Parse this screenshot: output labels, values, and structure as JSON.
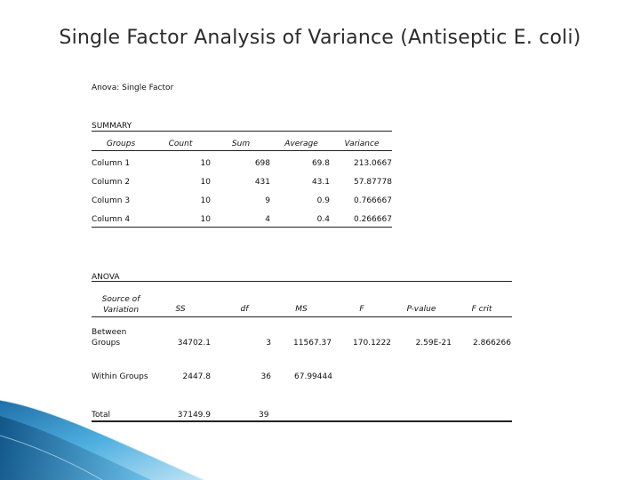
{
  "title": "Single Factor Analysis of Variance (Antiseptic E. coli)",
  "heading": "Anova: Single Factor",
  "summary": {
    "label": "SUMMARY",
    "headers": [
      "Groups",
      "Count",
      "Sum",
      "Average",
      "Variance"
    ],
    "rows": [
      [
        "Column 1",
        "10",
        "698",
        "69.8",
        "213.0667"
      ],
      [
        "Column 2",
        "10",
        "431",
        "43.1",
        "57.87778"
      ],
      [
        "Column 3",
        "10",
        "9",
        "0.9",
        "0.766667"
      ],
      [
        "Column 4",
        "10",
        "4",
        "0.4",
        "0.266667"
      ]
    ]
  },
  "anova": {
    "label": "ANOVA",
    "headers": [
      "Source of Variation",
      "SS",
      "df",
      "MS",
      "F",
      "P-value",
      "F crit"
    ],
    "rows": [
      [
        "Between Groups",
        "34702.1",
        "3",
        "11567.37",
        "170.1222",
        "2.59E-21",
        "2.866266"
      ],
      [
        "Within Groups",
        "2447.8",
        "36",
        "67.99444",
        "",
        "",
        ""
      ],
      [
        "Total",
        "37149.9",
        "39",
        "",
        "",
        "",
        ""
      ]
    ]
  },
  "colors": {
    "decoration": "#3a9ad4",
    "text": "#111111",
    "title": "#2b2b2b"
  }
}
